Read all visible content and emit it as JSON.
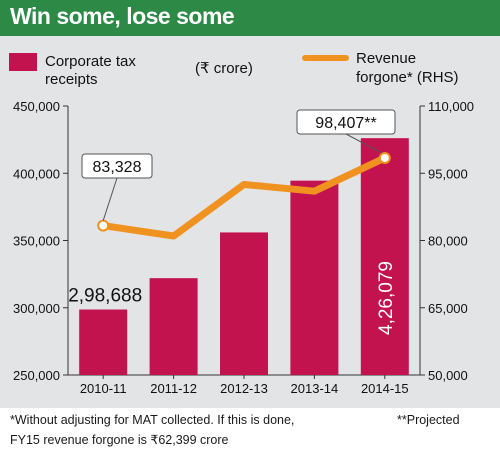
{
  "header": {
    "title": "Win some, lose some"
  },
  "colors": {
    "bar": "#c2134e",
    "line": "#f0921f",
    "title_bg": "#2c8a46",
    "panel_bg": "#e3e4e6"
  },
  "legend": {
    "bar_label_line1": "Corporate tax",
    "bar_label_line2": "receipts",
    "unit": "(₹ crore)",
    "line_label_line1": "Revenue",
    "line_label_line2": "forgone* (RHS)"
  },
  "chart_data": {
    "type": "bar",
    "categories": [
      "2010-11",
      "2011-12",
      "2012-13",
      "2013-14",
      "2014-15"
    ],
    "series": [
      {
        "name": "Corporate tax receipts",
        "type": "bar",
        "axis": "left",
        "values": [
          298688,
          322000,
          356000,
          394500,
          426079
        ]
      },
      {
        "name": "Revenue forgone*",
        "type": "line",
        "axis": "right",
        "values": [
          83328,
          81000,
          92500,
          91000,
          98407
        ]
      }
    ],
    "y_left": {
      "ylim": [
        250000,
        450000
      ],
      "ticks": [
        "250,000",
        "300,000",
        "350,000",
        "400,000",
        "450,000"
      ]
    },
    "y_right": {
      "ylim": [
        50000,
        110000
      ],
      "ticks": [
        "50,000",
        "65,000",
        "80,000",
        "95,000",
        "110,000"
      ]
    },
    "annotations": {
      "bar_first": "2,98,688",
      "bar_last": "4,26,079",
      "line_first": "83,328",
      "line_last": "98,407**"
    }
  },
  "footnotes": {
    "line1": "*Without adjusting for MAT collected. If this is done,",
    "line2": "FY15 revenue forgone is ₹62,399 crore",
    "projected": "**Projected"
  }
}
